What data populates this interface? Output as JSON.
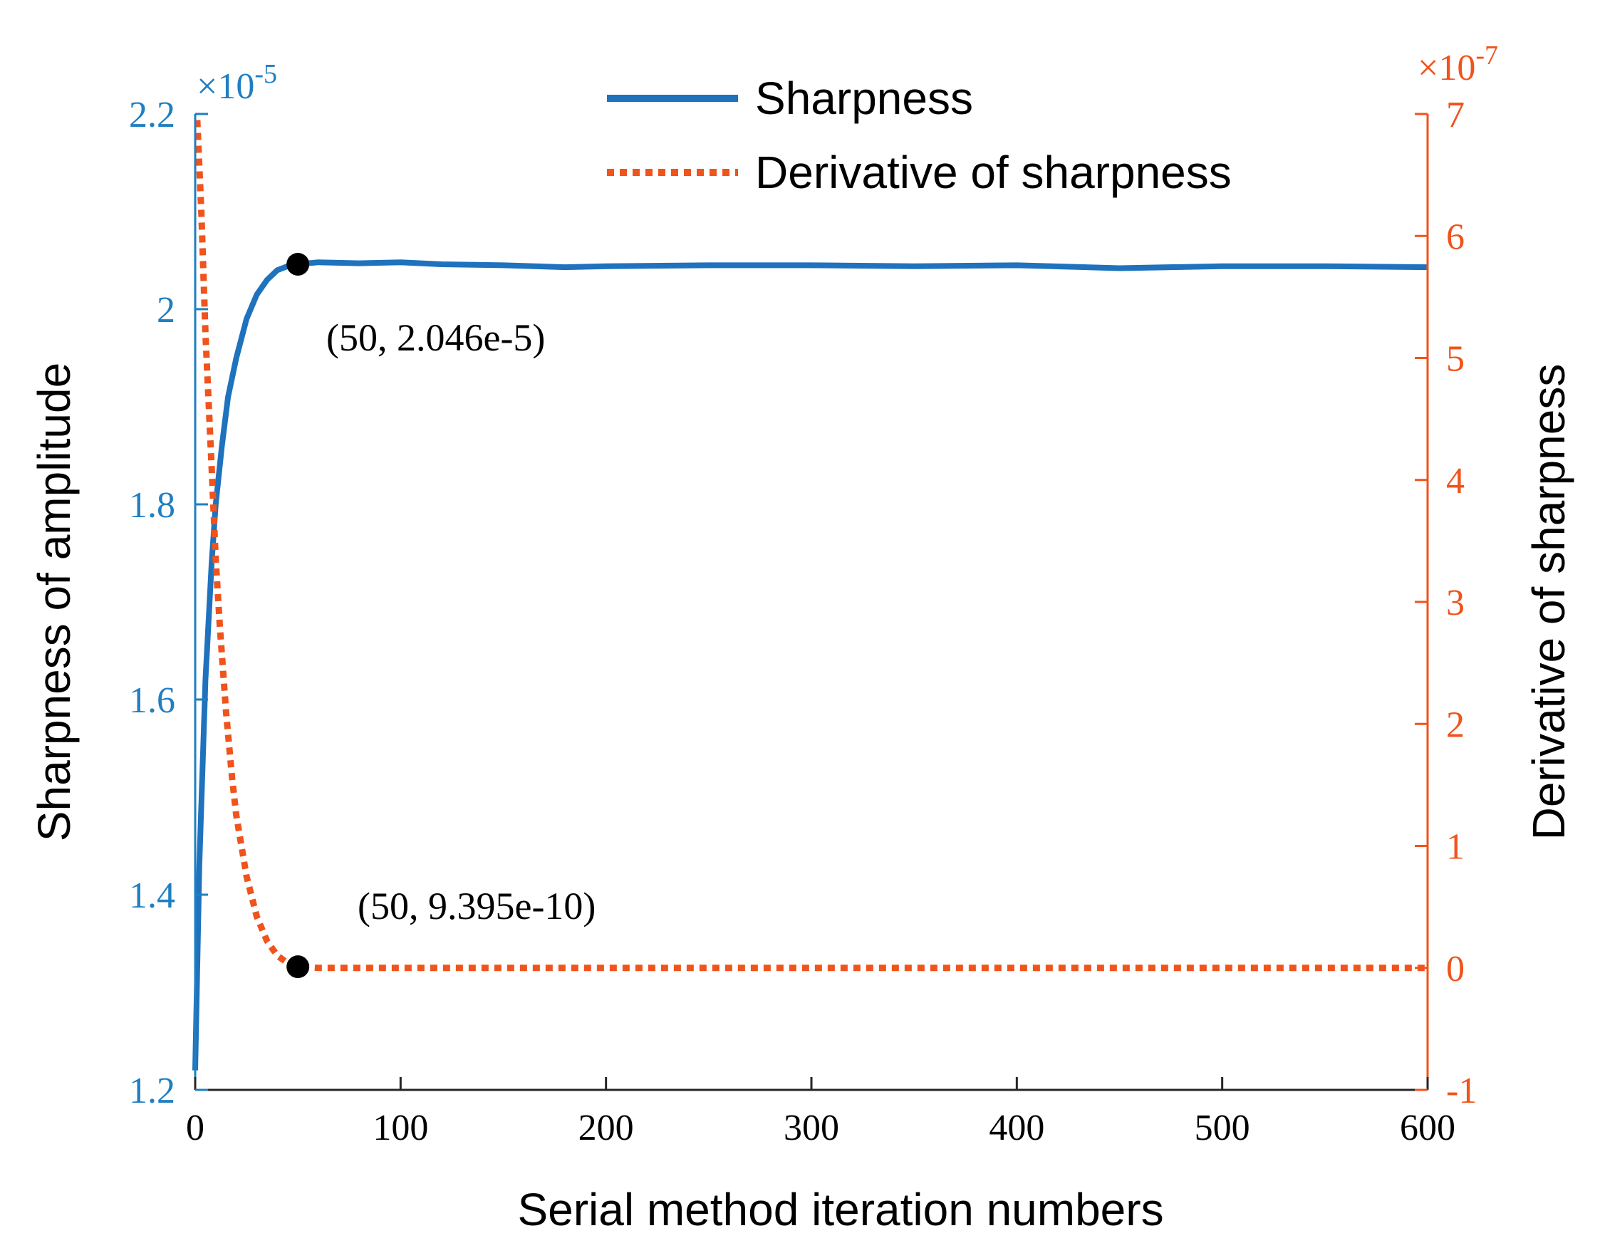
{
  "colors": {
    "left_axis": "#1f7fc1",
    "right_axis": "#f0531b",
    "sharpness_line": "#1f72bd",
    "derivative_line": "#f0531b",
    "marker": "#000000"
  },
  "chart_data": {
    "type": "line",
    "title": "",
    "xlabel": "Serial method iteration numbers",
    "ylabel_left": "Sharpness of amplitude",
    "ylabel_right": "Derivative of sharpness",
    "xlim": [
      0,
      600
    ],
    "xticks": [
      "0",
      "100",
      "200",
      "300",
      "400",
      "500",
      "600"
    ],
    "ylim_left": [
      1.2,
      2.2
    ],
    "yticks_left": [
      "1.2",
      "1.4",
      "1.6",
      "1.8",
      "2",
      "2.2"
    ],
    "ylim_right": [
      -1,
      7
    ],
    "yticks_right": [
      "-1",
      "0",
      "1",
      "2",
      "3",
      "4",
      "5",
      "6",
      "7"
    ],
    "left_multiplier": {
      "base": "×10",
      "exp": "-5"
    },
    "right_multiplier": {
      "base": "×10",
      "exp": "-7"
    },
    "legend": {
      "position": "top-center",
      "entries": [
        "Sharpness",
        "Derivative of sharpness"
      ]
    },
    "series": [
      {
        "name": "Sharpness",
        "axis": "left",
        "style": "solid",
        "x": [
          0,
          2,
          5,
          8,
          10,
          13,
          16,
          20,
          25,
          30,
          35,
          40,
          45,
          50,
          60,
          80,
          100,
          120,
          150,
          180,
          200,
          250,
          300,
          350,
          400,
          450,
          500,
          550,
          600
        ],
        "y": [
          1.22,
          1.43,
          1.62,
          1.74,
          1.8,
          1.86,
          1.91,
          1.95,
          1.99,
          2.015,
          2.03,
          2.04,
          2.044,
          2.046,
          2.048,
          2.047,
          2.048,
          2.046,
          2.045,
          2.043,
          2.044,
          2.045,
          2.045,
          2.044,
          2.045,
          2.042,
          2.044,
          2.044,
          2.043
        ]
      },
      {
        "name": "Derivative of sharpness",
        "axis": "right",
        "style": "dotted",
        "x": [
          1,
          3,
          5,
          8,
          10,
          12,
          15,
          18,
          20,
          25,
          30,
          35,
          40,
          45,
          50,
          60,
          100,
          200,
          300,
          400,
          500,
          600
        ],
        "y": [
          6.95,
          6.2,
          5.2,
          4.1,
          3.35,
          2.8,
          2.1,
          1.55,
          1.25,
          0.75,
          0.42,
          0.22,
          0.1,
          0.04,
          0.01,
          0.0,
          0.0,
          0.0,
          0.0,
          0.0,
          0.0,
          0.0
        ]
      }
    ],
    "annotations": [
      {
        "label": "(50, 2.046e-5)",
        "x": 50,
        "y": 2.046,
        "axis": "left"
      },
      {
        "label": "(50, 9.395e-10)",
        "x": 50,
        "y": 0.0094,
        "axis": "right"
      }
    ]
  }
}
